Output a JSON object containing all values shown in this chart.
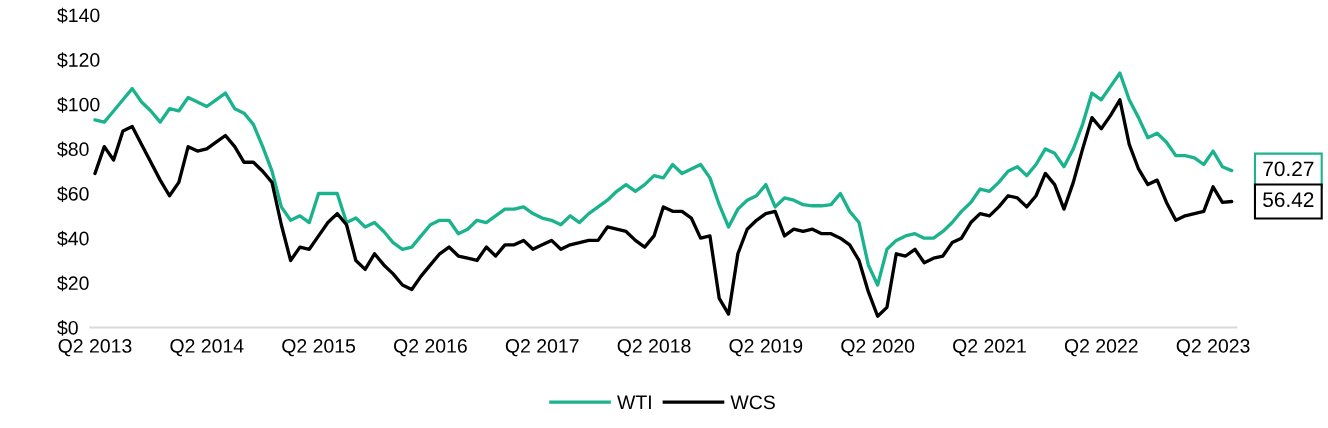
{
  "chart_data": {
    "type": "line",
    "categories": [
      "Q2 2013",
      null,
      null,
      null,
      null,
      null,
      null,
      null,
      null,
      null,
      null,
      null,
      "Q2 2014",
      null,
      null,
      null,
      null,
      null,
      null,
      null,
      null,
      null,
      null,
      null,
      "Q2 2015",
      null,
      null,
      null,
      null,
      null,
      null,
      null,
      null,
      null,
      null,
      null,
      "Q2 2016",
      null,
      null,
      null,
      null,
      null,
      null,
      null,
      null,
      null,
      null,
      null,
      "Q2 2017",
      null,
      null,
      null,
      null,
      null,
      null,
      null,
      null,
      null,
      null,
      null,
      "Q2 2018",
      null,
      null,
      null,
      null,
      null,
      null,
      null,
      null,
      null,
      null,
      null,
      "Q2 2019",
      null,
      null,
      null,
      null,
      null,
      null,
      null,
      null,
      null,
      null,
      null,
      "Q2 2020",
      null,
      null,
      null,
      null,
      null,
      null,
      null,
      null,
      null,
      null,
      null,
      "Q2 2021",
      null,
      null,
      null,
      null,
      null,
      null,
      null,
      null,
      null,
      null,
      null,
      "Q2 2022",
      null,
      null,
      null,
      null,
      null,
      null,
      null,
      null,
      null,
      null,
      null,
      "Q2 2023",
      null,
      null
    ],
    "ylim": [
      0,
      140
    ],
    "yticks": [
      {
        "value": 0,
        "label": "$0"
      },
      {
        "value": 20,
        "label": "$20"
      },
      {
        "value": 40,
        "label": "$40"
      },
      {
        "value": 60,
        "label": "$60"
      },
      {
        "value": 80,
        "label": "$80"
      },
      {
        "value": 100,
        "label": "$100"
      },
      {
        "value": 120,
        "label": "$120"
      },
      {
        "value": 140,
        "label": "$140"
      }
    ],
    "grid": false,
    "legend": "bottom",
    "marker": "none",
    "line_style": "solid",
    "series": [
      {
        "name": "WTI",
        "color": "#1ab38e",
        "values": [
          93,
          92,
          97,
          102,
          107,
          101,
          97,
          92,
          98,
          97,
          103,
          101,
          99,
          102,
          105,
          98,
          96,
          91,
          81,
          70,
          54,
          48,
          50,
          47,
          60,
          60,
          60,
          47,
          49,
          45,
          47,
          43,
          38,
          35,
          36,
          41,
          46,
          48,
          48,
          42,
          44,
          48,
          47,
          50,
          53,
          53,
          54,
          51,
          49,
          48,
          46,
          50,
          47,
          51,
          54,
          57,
          61,
          64,
          61,
          64,
          68,
          67,
          73,
          69,
          71,
          73,
          67,
          55,
          45,
          53,
          57,
          59,
          64,
          54,
          58,
          57,
          55,
          54.5,
          54.5,
          55,
          60,
          52,
          47,
          28,
          19,
          35,
          39,
          41,
          42,
          40,
          40,
          43,
          47,
          52,
          56,
          62,
          61,
          65,
          70,
          72,
          68,
          73,
          80,
          78,
          72,
          80,
          91,
          105,
          102,
          108,
          114,
          102,
          94,
          85,
          87,
          83,
          77,
          77,
          76,
          73,
          79,
          72,
          70.27
        ],
        "value_labels": [
          null,
          null,
          null,
          null,
          null,
          null,
          null,
          null,
          null,
          null,
          null,
          null,
          null,
          null,
          null,
          null,
          null,
          null,
          null,
          null,
          null,
          null,
          null,
          null,
          null,
          null,
          null,
          null,
          null,
          null,
          null,
          null,
          null,
          null,
          null,
          null,
          null,
          null,
          null,
          null,
          null,
          null,
          null,
          null,
          null,
          null,
          null,
          null,
          null,
          null,
          null,
          null,
          null,
          null,
          null,
          null,
          null,
          null,
          null,
          null,
          null,
          null,
          null,
          null,
          null,
          null,
          null,
          null,
          null,
          null,
          null,
          null,
          null,
          null,
          null,
          null,
          null,
          null,
          null,
          null,
          null,
          null,
          null,
          null,
          null,
          null,
          null,
          null,
          null,
          null,
          null,
          null,
          null,
          null,
          null,
          null,
          null,
          null,
          null,
          null,
          null,
          null,
          null,
          null,
          null,
          null,
          null,
          null,
          null,
          null,
          null,
          null,
          null,
          null,
          null,
          null,
          null,
          null,
          null,
          null,
          null,
          null,
          "70.27"
        ]
      },
      {
        "name": "WCS",
        "color": "#000000",
        "values": [
          69,
          81,
          75,
          88,
          90,
          82,
          74,
          66,
          59,
          65,
          81,
          79,
          80,
          83,
          86,
          81,
          74,
          74,
          70,
          65,
          46,
          30,
          36,
          35,
          41,
          47,
          51,
          46,
          30,
          26,
          33,
          28,
          24,
          19,
          17,
          23,
          28,
          33,
          36,
          32,
          31,
          30,
          36,
          32,
          37,
          37,
          39,
          35,
          37,
          39,
          35,
          37,
          38,
          39,
          39,
          45,
          44,
          43,
          39,
          36,
          41,
          54,
          52,
          52,
          49,
          40,
          41,
          13,
          6,
          33,
          44,
          48,
          51,
          52,
          41,
          44,
          43,
          44,
          42,
          42,
          40,
          37,
          30,
          16,
          5,
          9,
          33,
          32,
          35,
          29,
          31,
          32,
          38,
          40,
          47,
          51,
          50,
          54,
          59,
          58,
          54,
          59,
          69,
          64,
          53,
          65,
          80,
          94,
          89,
          95,
          102,
          82,
          71,
          64,
          66,
          56,
          48,
          50,
          51,
          52,
          63,
          56,
          56.42
        ],
        "value_labels": [
          null,
          null,
          null,
          null,
          null,
          null,
          null,
          null,
          null,
          null,
          null,
          null,
          null,
          null,
          null,
          null,
          null,
          null,
          null,
          null,
          null,
          null,
          null,
          null,
          null,
          null,
          null,
          null,
          null,
          null,
          null,
          null,
          null,
          null,
          null,
          null,
          null,
          null,
          null,
          null,
          null,
          null,
          null,
          null,
          null,
          null,
          null,
          null,
          null,
          null,
          null,
          null,
          null,
          null,
          null,
          null,
          null,
          null,
          null,
          null,
          null,
          null,
          null,
          null,
          null,
          null,
          null,
          null,
          null,
          null,
          null,
          null,
          null,
          null,
          null,
          null,
          null,
          null,
          null,
          null,
          null,
          null,
          null,
          null,
          null,
          null,
          null,
          null,
          null,
          null,
          null,
          null,
          null,
          null,
          null,
          null,
          null,
          null,
          null,
          null,
          null,
          null,
          null,
          null,
          null,
          null,
          null,
          null,
          null,
          null,
          null,
          null,
          null,
          null,
          null,
          null,
          null,
          null,
          null,
          null,
          null,
          null,
          "56.42"
        ]
      }
    ]
  }
}
